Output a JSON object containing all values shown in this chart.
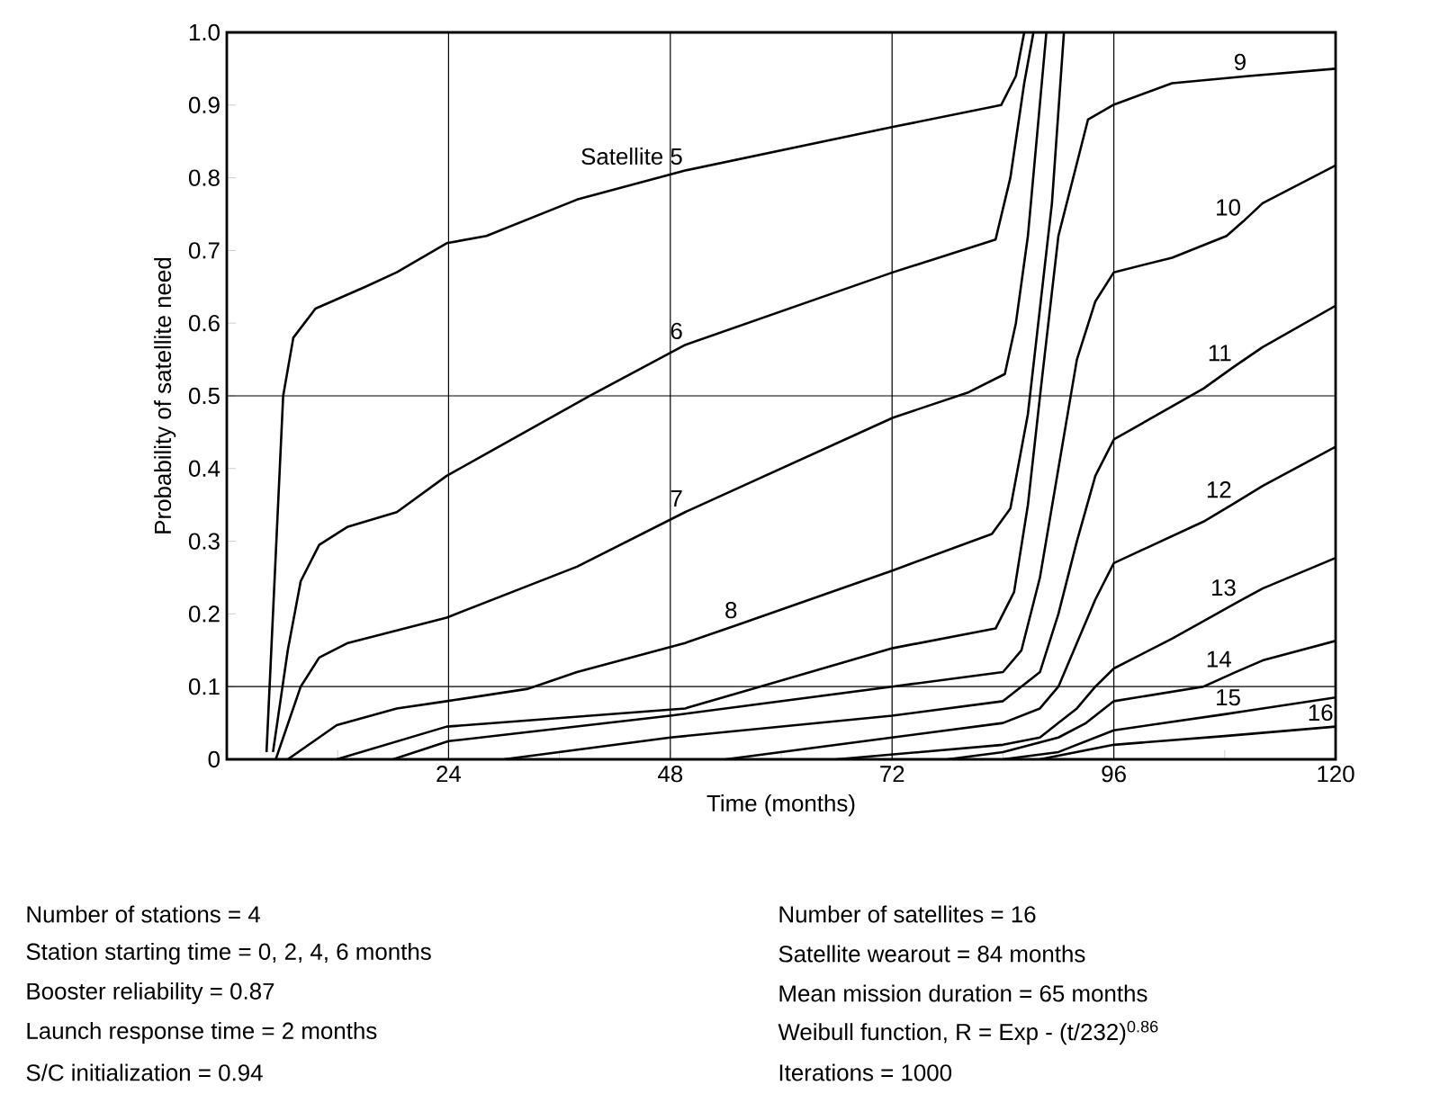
{
  "chart_data": {
    "type": "line",
    "xlabel": "Time (months)",
    "ylabel": "Probability of satellite need",
    "xlim": [
      0,
      120
    ],
    "ylim": [
      0,
      1
    ],
    "xticks": [
      {
        "value": 12,
        "label": null
      },
      24,
      {
        "value": 36,
        "label": null
      },
      48,
      {
        "value": 60,
        "label": null
      },
      72,
      {
        "value": 84,
        "label": null
      },
      96,
      {
        "value": 108,
        "label": null
      },
      120
    ],
    "yticks": [
      0,
      0.1,
      0.2,
      0.3,
      0.4,
      0.5,
      0.6,
      0.7,
      0.8,
      0.9,
      {
        "value": 1.0,
        "label": "1.0"
      }
    ],
    "marker": "none",
    "line_style": "solid",
    "ref_lines": [
      {
        "axis": "x",
        "value": 24,
        "color": "#000000"
      },
      {
        "axis": "x",
        "value": 48,
        "color": "#000000"
      },
      {
        "axis": "x",
        "value": 72,
        "color": "#000000"
      },
      {
        "axis": "x",
        "value": 96,
        "color": "#000000"
      },
      {
        "axis": "y",
        "value": 0.1,
        "color": "#000000"
      },
      {
        "axis": "y",
        "value": 0.5,
        "color": "#000000"
      }
    ],
    "series": [
      {
        "color": "#000000",
        "x": [
          4.3,
          6.1,
          7.2,
          9.6,
          15,
          18.4,
          23.8,
          28.1,
          37.9,
          49.6,
          72.1,
          83.8,
          85.4,
          86.3
        ],
        "values": [
          0.01,
          0.5,
          0.58,
          0.62,
          0.65,
          0.67,
          0.71,
          0.72,
          0.77,
          0.81,
          0.87,
          0.9,
          0.94,
          1.0
        ]
      },
      {
        "color": "#000000",
        "x": [
          5,
          6.6,
          8,
          10,
          13.1,
          18.4,
          23.8,
          39.3,
          49.6,
          72.1,
          83.2,
          84.8,
          86.3,
          87.3
        ],
        "values": [
          0.01,
          0.15,
          0.245,
          0.295,
          0.32,
          0.34,
          0.39,
          0.5,
          0.57,
          0.67,
          0.715,
          0.8,
          0.93,
          1.0
        ]
      },
      {
        "color": "#000000",
        "x": [
          5.3,
          8,
          10,
          13.1,
          23.8,
          37.9,
          49.6,
          72.1,
          80.3,
          84.2,
          85.4,
          86.7,
          88.7
        ],
        "values": [
          0,
          0.1,
          0.14,
          0.16,
          0.195,
          0.265,
          0.34,
          0.47,
          0.505,
          0.53,
          0.6,
          0.72,
          1.0
        ]
      },
      {
        "color": "#000000",
        "x": [
          6.6,
          11.9,
          18.4,
          23.8,
          32.6,
          37.9,
          49.6,
          55.5,
          72.1,
          82.8,
          84.8,
          86.7,
          89.3,
          90.6
        ],
        "values": [
          0,
          0.047,
          0.07,
          0.08,
          0.097,
          0.12,
          0.16,
          0.186,
          0.26,
          0.31,
          0.345,
          0.475,
          0.765,
          1.0
        ]
      },
      {
        "color": "#000000",
        "x": [
          11.9,
          23.8,
          49.6,
          72.1,
          83.2,
          85.2,
          86.7,
          88.1,
          90,
          93.2,
          95.9,
          102.3,
          110.6,
          120
        ],
        "values": [
          0,
          0.045,
          0.07,
          0.153,
          0.18,
          0.23,
          0.35,
          0.51,
          0.72,
          0.88,
          0.9,
          0.93,
          0.94,
          0.95
        ]
      },
      {
        "color": "#000000",
        "x": [
          18,
          24,
          48,
          72,
          84,
          86,
          88,
          90,
          92,
          94,
          96,
          102.3,
          108.2,
          110,
          112.1,
          120
        ],
        "values": [
          0,
          0.025,
          0.06,
          0.1,
          0.12,
          0.15,
          0.25,
          0.4,
          0.55,
          0.63,
          0.67,
          0.69,
          0.72,
          0.74,
          0.765,
          0.817
        ]
      },
      {
        "color": "#000000",
        "x": [
          30,
          48,
          72,
          84,
          88,
          90,
          92,
          94,
          96,
          105.7,
          109,
          112.1,
          120
        ],
        "values": [
          0,
          0.03,
          0.06,
          0.08,
          0.12,
          0.2,
          0.3,
          0.39,
          0.44,
          0.51,
          0.54,
          0.567,
          0.624
        ]
      },
      {
        "color": "#000000",
        "x": [
          54,
          72,
          84,
          88,
          90,
          92,
          94,
          96,
          105.7,
          109,
          112.1,
          120
        ],
        "values": [
          0,
          0.03,
          0.05,
          0.07,
          0.1,
          0.16,
          0.22,
          0.27,
          0.327,
          0.352,
          0.376,
          0.43
        ]
      },
      {
        "color": "#000000",
        "x": [
          66,
          84,
          88,
          90,
          92,
          94,
          96,
          102.3,
          109.5,
          112.1,
          120
        ],
        "values": [
          0,
          0.02,
          0.03,
          0.05,
          0.07,
          0.1,
          0.125,
          0.166,
          0.217,
          0.235,
          0.277
        ]
      },
      {
        "color": "#000000",
        "x": [
          78,
          84,
          90,
          93,
          96,
          105.7,
          109,
          112.1,
          120
        ],
        "values": [
          0,
          0.01,
          0.03,
          0.05,
          0.08,
          0.1,
          0.119,
          0.136,
          0.163
        ]
      },
      {
        "color": "#000000",
        "x": [
          84,
          90,
          96,
          108,
          110,
          120
        ],
        "values": [
          0,
          0.01,
          0.04,
          0.062,
          0.066,
          0.085
        ]
      },
      {
        "color": "#000000",
        "x": [
          88,
          96,
          108,
          120
        ],
        "values": [
          0,
          0.02,
          0.032,
          0.045
        ]
      }
    ],
    "annotations": [
      {
        "text": "Satellite 5",
        "x": 49.6,
        "y": 0.81
      },
      {
        "text": "6",
        "x": 49.6,
        "y": 0.57
      },
      {
        "text": "7",
        "x": 49.6,
        "y": 0.34
      },
      {
        "text": "8",
        "x": 55.5,
        "y": 0.186
      },
      {
        "text": "9",
        "x": 110.6,
        "y": 0.94
      },
      {
        "text": "10",
        "x": 110,
        "y": 0.74
      },
      {
        "text": "11",
        "x": 109,
        "y": 0.54
      },
      {
        "text": "12",
        "x": 109,
        "y": 0.352
      },
      {
        "text": "13",
        "x": 109.5,
        "y": 0.217
      },
      {
        "text": "14",
        "x": 109,
        "y": 0.119
      },
      {
        "text": "15",
        "x": 110,
        "y": 0.066
      },
      {
        "text": "16",
        "x": 120,
        "y": 0.045
      },
      "Number of stations = 4",
      "Station starting time = 0, 2, 4, 6 months",
      "Booster reliability = 0.87",
      "Launch response time = 2 months",
      "S/C initialization = 0.94",
      "Number of satellites = 16",
      "Satellite wearout = 84 months",
      "Mean mission duration = 65 months",
      "Weibull function, R = Exp - (t/232)$^{0.86}$",
      "Iterations = 1000"
    ]
  }
}
